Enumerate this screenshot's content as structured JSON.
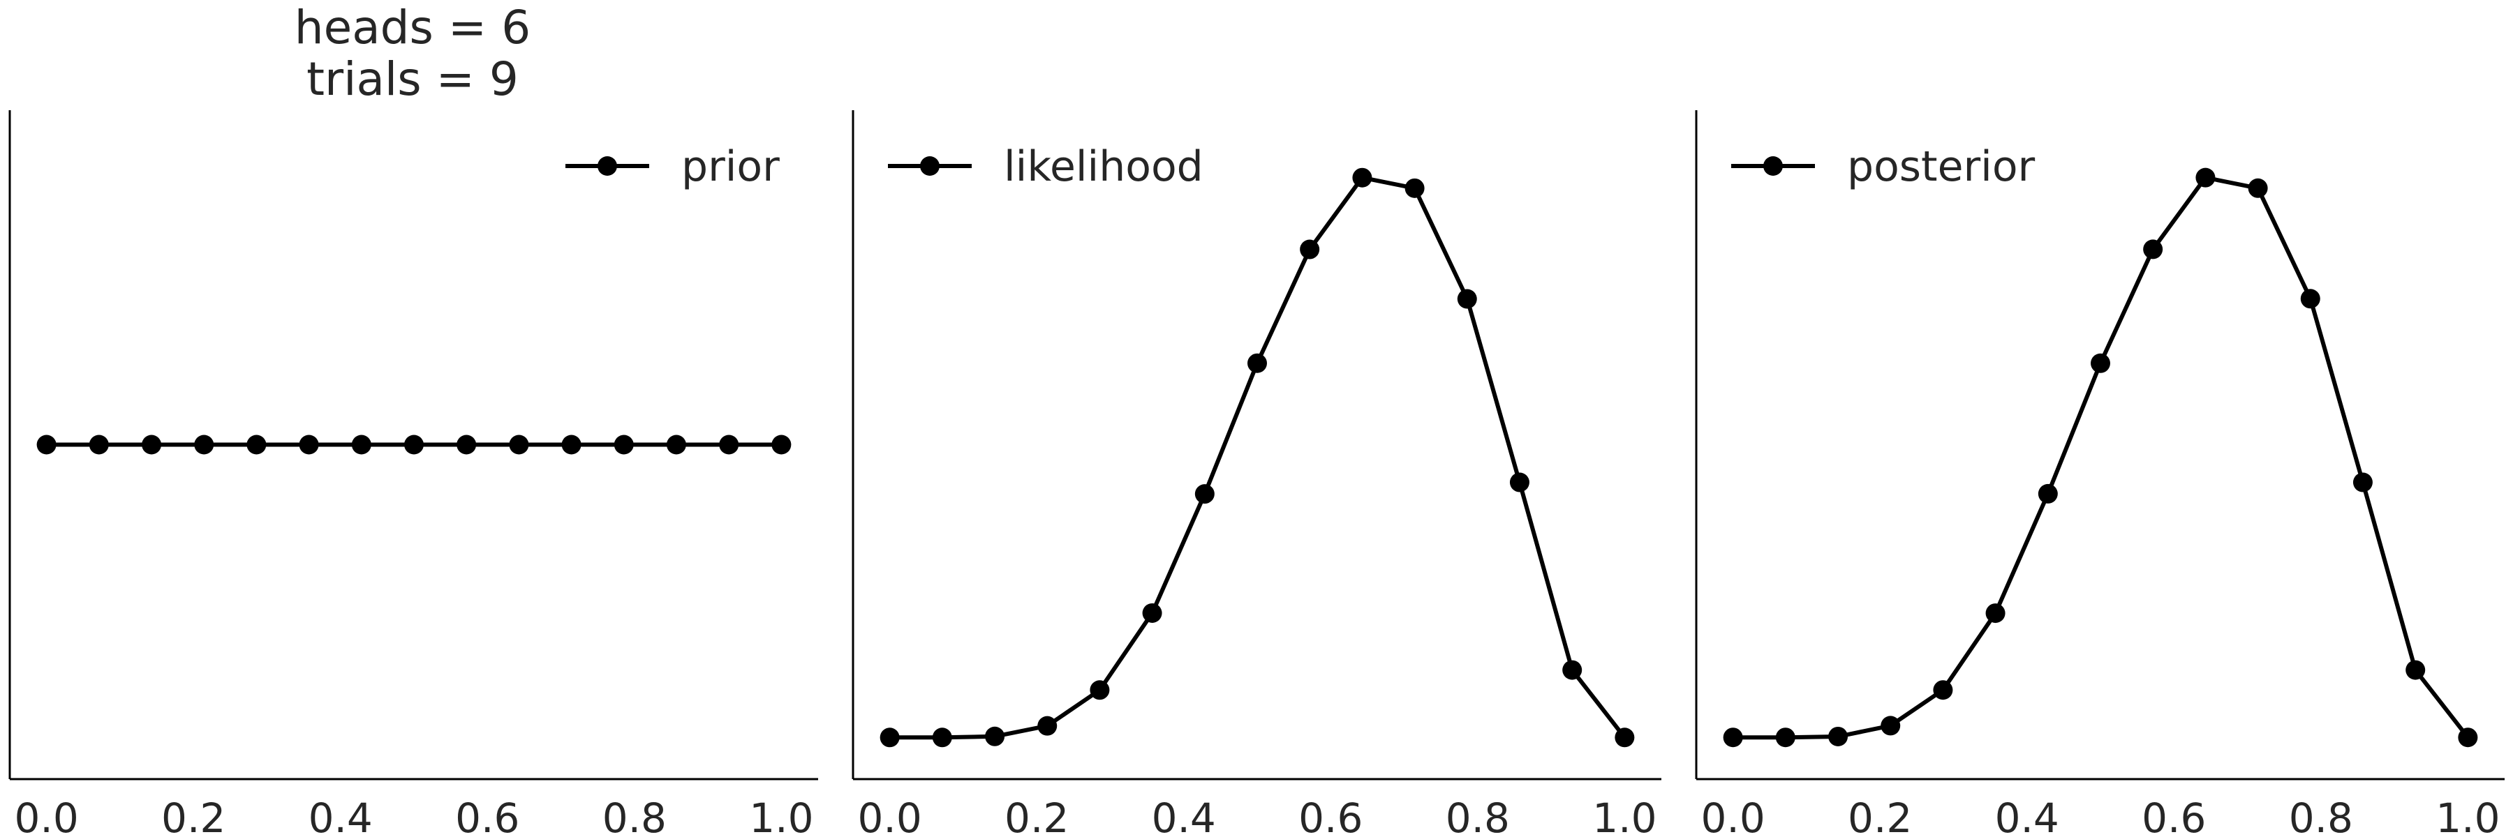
{
  "figure_title": {
    "line1": "heads = 6",
    "line2": "trials = 9"
  },
  "chart_data": [
    {
      "type": "line",
      "legend_label": "prior",
      "legend_position": "top-right",
      "x": [
        0.0,
        0.0714,
        0.1429,
        0.2143,
        0.2857,
        0.3571,
        0.4286,
        0.5,
        0.5714,
        0.6429,
        0.7143,
        0.7857,
        0.8571,
        0.9286,
        1.0
      ],
      "values": [
        1,
        1,
        1,
        1,
        1,
        1,
        1,
        1,
        1,
        1,
        1,
        1,
        1,
        1,
        1
      ],
      "xlim": [
        -0.05,
        1.05
      ],
      "ylim": [
        0,
        2.0
      ],
      "xticks": [
        "0.0",
        "0.2",
        "0.4",
        "0.6",
        "0.8",
        "1.0"
      ],
      "grid": false,
      "color": "#000000"
    },
    {
      "type": "line",
      "legend_label": "likelihood",
      "legend_position": "top-left",
      "x": [
        0.0,
        0.0714,
        0.1429,
        0.2143,
        0.2857,
        0.3571,
        0.4286,
        0.5,
        0.5714,
        0.6429,
        0.7143,
        0.7857,
        0.8571,
        0.9286,
        1.0
      ],
      "values": [
        0.0,
        0.0,
        0.001,
        0.011,
        0.045,
        0.118,
        0.231,
        0.355,
        0.463,
        0.531,
        0.521,
        0.416,
        0.242,
        0.064,
        0.0
      ],
      "xlim": [
        -0.05,
        1.05
      ],
      "ylim": [
        -0.0395,
        0.595
      ],
      "xticks": [
        "0.0",
        "0.2",
        "0.4",
        "0.6",
        "0.8",
        "1.0"
      ],
      "grid": false,
      "color": "#000000"
    },
    {
      "type": "line",
      "legend_label": "posterior",
      "legend_position": "top-left",
      "x": [
        0.0,
        0.0714,
        0.1429,
        0.2143,
        0.2857,
        0.3571,
        0.4286,
        0.5,
        0.5714,
        0.6429,
        0.7143,
        0.7857,
        0.8571,
        0.9286,
        1.0
      ],
      "values": [
        0.0,
        0.0,
        0.0003,
        0.0041,
        0.0166,
        0.0435,
        0.0853,
        0.131,
        0.1709,
        0.196,
        0.1923,
        0.1536,
        0.0893,
        0.0236,
        0.0
      ],
      "xlim": [
        -0.05,
        1.05
      ],
      "ylim": [
        -0.0146,
        0.2196
      ],
      "xticks": [
        "0.0",
        "0.2",
        "0.4",
        "0.6",
        "0.8",
        "1.0"
      ],
      "grid": false,
      "color": "#000000"
    }
  ]
}
